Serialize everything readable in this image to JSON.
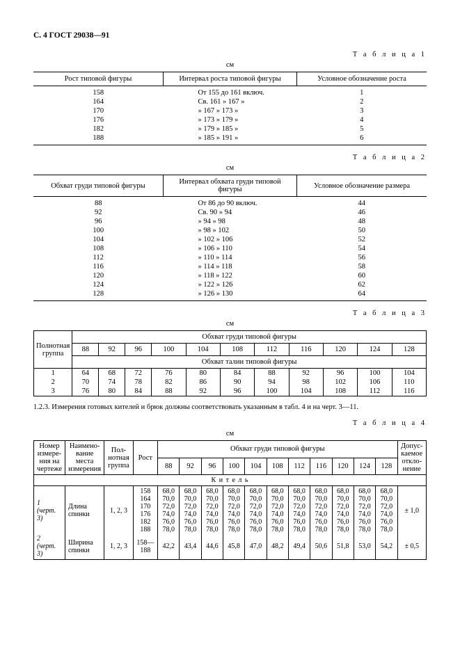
{
  "page_header": "С. 4 ГОСТ 29038—91",
  "tables": {
    "t1": {
      "label": "Т а б л и ц а  1",
      "unit": "см",
      "headers": [
        "Рост типовой фигуры",
        "Интервал роста типовой фигуры",
        "Условное обозначение роста"
      ],
      "rows": [
        [
          "158",
          "От 155 до 161 включ.",
          "1"
        ],
        [
          "164",
          "Св. 161  »  167    »",
          "2"
        ],
        [
          "170",
          "»   167  »  173    »",
          "3"
        ],
        [
          "176",
          "»   173  »  179    »",
          "4"
        ],
        [
          "182",
          "»   179  »  185    »",
          "5"
        ],
        [
          "188",
          "»   185  »  191    »",
          "6"
        ]
      ]
    },
    "t2": {
      "label": "Т а б л и ц а  2",
      "unit": "см",
      "headers": [
        "Обхват груди типовой фигуры",
        "Интервал обхвата груди типовой фигуры",
        "Условное обозначение размера"
      ],
      "rows": [
        [
          "88",
          "От  86 до  90 включ.",
          "44"
        ],
        [
          "92",
          "Св. 90  »  94",
          "46"
        ],
        [
          "96",
          "»   94  »  98",
          "48"
        ],
        [
          "100",
          "»   98  »  102",
          "50"
        ],
        [
          "104",
          "»  102  »  106",
          "52"
        ],
        [
          "108",
          "»  106  »  110",
          "54"
        ],
        [
          "112",
          "»  110  »  114",
          "56"
        ],
        [
          "116",
          "»  114  »  118",
          "58"
        ],
        [
          "120",
          "»  118  »  122",
          "60"
        ],
        [
          "124",
          "»  122  »  126",
          "62"
        ],
        [
          "128",
          "»  126  »  130",
          "64"
        ]
      ]
    },
    "t3": {
      "label": "Т а б л и ц а  3",
      "unit": "см",
      "row_label": "Полнотная группа",
      "span_top": "Обхват груди типовой фигуры",
      "span_mid": "Обхват талии типовой фигуры",
      "chest": [
        "88",
        "92",
        "96",
        "100",
        "104",
        "108",
        "112",
        "116",
        "120",
        "124",
        "128"
      ],
      "rows": [
        {
          "g": "1",
          "v": [
            "64",
            "68",
            "72",
            "76",
            "80",
            "84",
            "88",
            "92",
            "96",
            "100",
            "104"
          ]
        },
        {
          "g": "2",
          "v": [
            "70",
            "74",
            "78",
            "82",
            "86",
            "90",
            "94",
            "98",
            "102",
            "106",
            "110"
          ]
        },
        {
          "g": "3",
          "v": [
            "76",
            "80",
            "84",
            "88",
            "92",
            "96",
            "100",
            "104",
            "108",
            "112",
            "116"
          ]
        }
      ]
    },
    "t4": {
      "para": "1.2.3. Измерения готовых кителей и брюк должны соответствовать указанным в табл. 4 и на черт. 3—11.",
      "label": "Т а б л и ц а  4",
      "unit": "см",
      "h": {
        "num": "Номер измере-\nния на чертеже",
        "name": "Наимено-\nвание места измерения",
        "poln": "Пол-\nнотная группа",
        "rost": "Рост",
        "span": "Обхват груди типовой фигуры",
        "tol": "Допус-\nкаемое откло-\nнение"
      },
      "chest": [
        "88",
        "92",
        "96",
        "100",
        "104",
        "108",
        "112",
        "116",
        "120",
        "124",
        "128"
      ],
      "section": "К и т е л ь",
      "blocks": [
        {
          "num": "1",
          "numref": "(черт. 3)",
          "name": "Длина спинки",
          "poln": "1, 2, 3",
          "tol": "± 1,0",
          "rows": [
            {
              "rost": "158",
              "v": [
                "68,0",
                "68,0",
                "68,0",
                "68,0",
                "68,0",
                "68,0",
                "68,0",
                "68,0",
                "68,0",
                "68,0",
                "68,0"
              ]
            },
            {
              "rost": "164",
              "v": [
                "70,0",
                "70,0",
                "70,0",
                "70,0",
                "70,0",
                "70,0",
                "70,0",
                "70,0",
                "70,0",
                "70,0",
                "70,0"
              ]
            },
            {
              "rost": "170",
              "v": [
                "72,0",
                "72,0",
                "72,0",
                "72,0",
                "72,0",
                "72,0",
                "72,0",
                "72,0",
                "72,0",
                "72,0",
                "72,0"
              ]
            },
            {
              "rost": "176",
              "v": [
                "74,0",
                "74,0",
                "74,0",
                "74,0",
                "74,0",
                "74,0",
                "74,0",
                "74,0",
                "74,0",
                "74,0",
                "74,0"
              ]
            },
            {
              "rost": "182",
              "v": [
                "76,0",
                "76,0",
                "76,0",
                "76,0",
                "76,0",
                "76,0",
                "76,0",
                "76,0",
                "76,0",
                "76,0",
                "76,0"
              ]
            },
            {
              "rost": "188",
              "v": [
                "78,0",
                "78,0",
                "78,0",
                "78,0",
                "78,0",
                "78,0",
                "78,0",
                "78,0",
                "78,0",
                "78,0",
                "78,0"
              ]
            }
          ]
        },
        {
          "num": "2",
          "numref": "(черт. 3)",
          "name": "Ширина спинки",
          "poln": "1, 2, 3",
          "tol": "± 0,5",
          "rows": [
            {
              "rost": "158—188",
              "v": [
                "42,2",
                "43,4",
                "44,6",
                "45,8",
                "47,0",
                "48,2",
                "49,4",
                "50,6",
                "51,8",
                "53,0",
                "54,2"
              ]
            }
          ]
        }
      ]
    }
  }
}
